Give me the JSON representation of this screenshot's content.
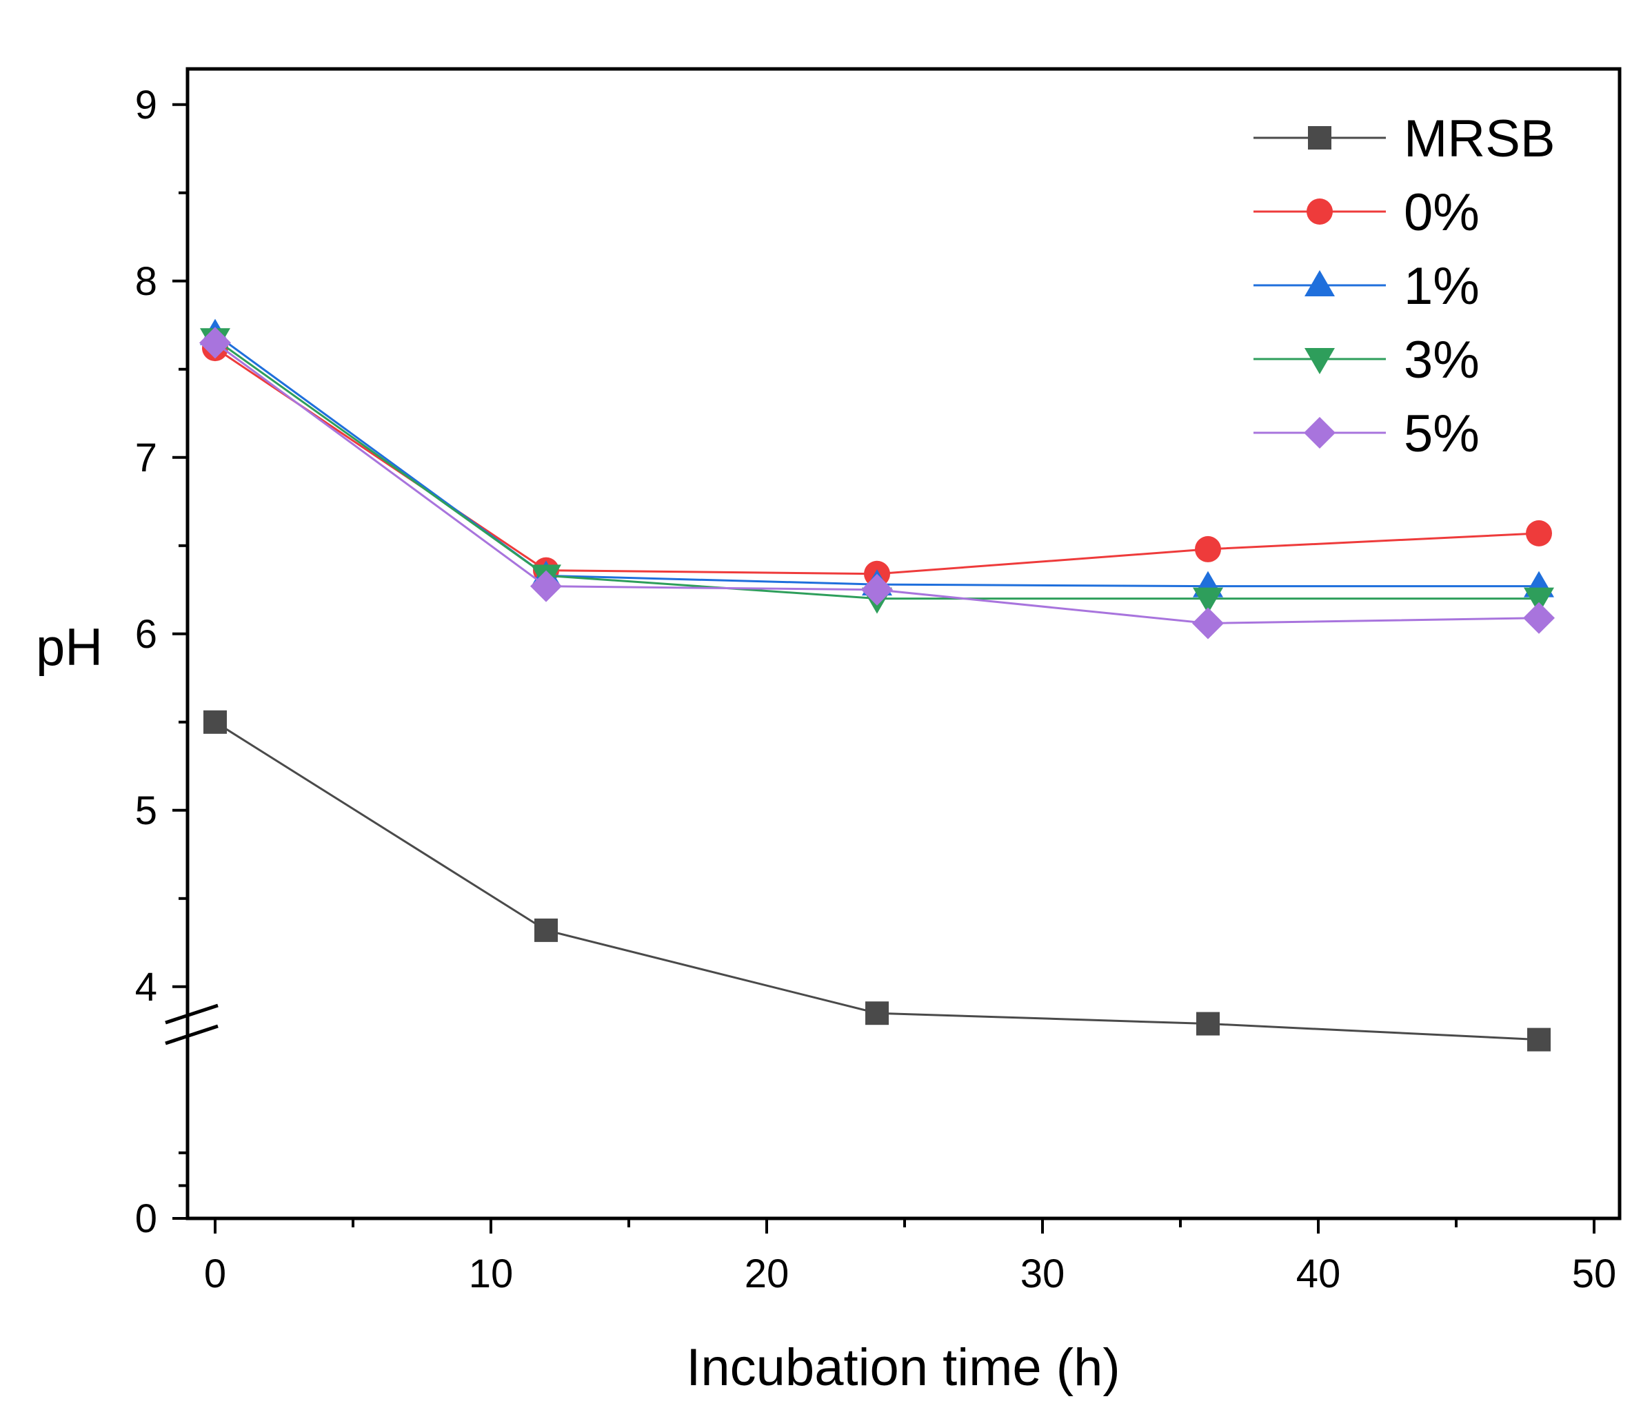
{
  "chart_data": {
    "type": "line",
    "title": "",
    "xlabel": "Incubation time (h)",
    "ylabel": "pH",
    "xlim": [
      -1,
      50.9
    ],
    "xticks": [
      0,
      10,
      20,
      30,
      40,
      50
    ],
    "xticks_minor": [
      5,
      15,
      25,
      35,
      45
    ],
    "y_axis_break": {
      "lower_segment": [
        0,
        3.3
      ],
      "upper_segment": [
        3.3,
        9
      ]
    },
    "yticks": [
      0,
      4,
      5,
      6,
      7,
      8,
      9
    ],
    "yticks_minor": [
      1,
      2,
      4.5,
      5.5,
      6.5,
      7.5,
      8.5
    ],
    "legend_position": "top-right",
    "x": [
      0,
      12,
      24,
      36,
      48
    ],
    "series": [
      {
        "name": "MRSB",
        "color": "#4a4a4a",
        "marker": "square",
        "values": [
          5.5,
          4.32,
          3.85,
          3.79,
          3.7
        ]
      },
      {
        "name": "0%",
        "color": "#ee3b3b",
        "marker": "circle",
        "values": [
          7.62,
          6.36,
          6.34,
          6.48,
          6.57
        ]
      },
      {
        "name": "1%",
        "color": "#1f6fdc",
        "marker": "triangle-up",
        "values": [
          7.7,
          6.33,
          6.28,
          6.27,
          6.27
        ]
      },
      {
        "name": "3%",
        "color": "#2e9e5b",
        "marker": "triangle-down",
        "values": [
          7.67,
          6.33,
          6.2,
          6.2,
          6.2
        ]
      },
      {
        "name": "5%",
        "color": "#a874dd",
        "marker": "diamond",
        "values": [
          7.65,
          6.27,
          6.25,
          6.06,
          6.09
        ]
      }
    ]
  }
}
